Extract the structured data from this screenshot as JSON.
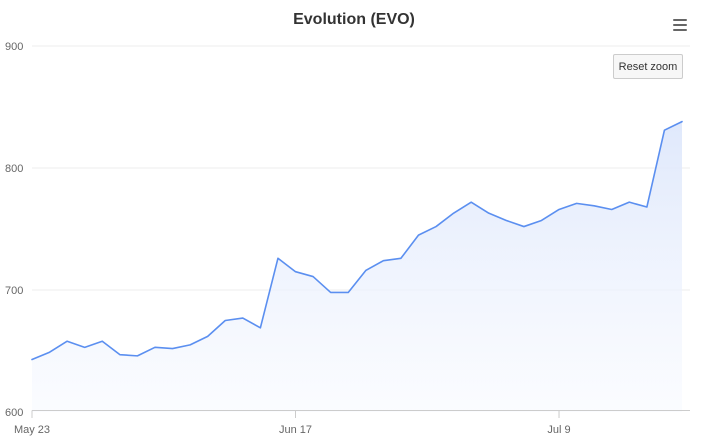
{
  "title": "Evolution (EVO)",
  "reset_zoom_label": "Reset zoom",
  "menu_icon": "hamburger-menu-icon",
  "colors": {
    "line": "#5b8ff0",
    "area_top": "#dce6fb",
    "area_bottom": "#f8faff",
    "grid": "#eeeeee",
    "axis": "#cccccc",
    "label": "#666666"
  },
  "chart_data": {
    "type": "area",
    "title": "Evolution (EVO)",
    "xlabel": "",
    "ylabel": "",
    "ylim": [
      600,
      900
    ],
    "yticks": [
      600,
      700,
      800,
      900
    ],
    "xticks": [
      {
        "index": 0,
        "label": "May 23"
      },
      {
        "index": 15,
        "label": "Jun 17"
      },
      {
        "index": 30,
        "label": "Jul 9"
      }
    ],
    "legend": false,
    "grid": true,
    "series": [
      {
        "values": [
          643,
          649,
          658,
          653,
          658,
          647,
          646,
          653,
          652,
          655,
          662,
          675,
          677,
          669,
          726,
          715,
          711,
          698,
          698,
          716,
          724,
          726,
          745,
          752,
          763,
          772,
          763,
          757,
          752,
          757,
          766,
          771,
          769,
          766,
          772,
          768,
          831,
          838
        ]
      }
    ]
  }
}
